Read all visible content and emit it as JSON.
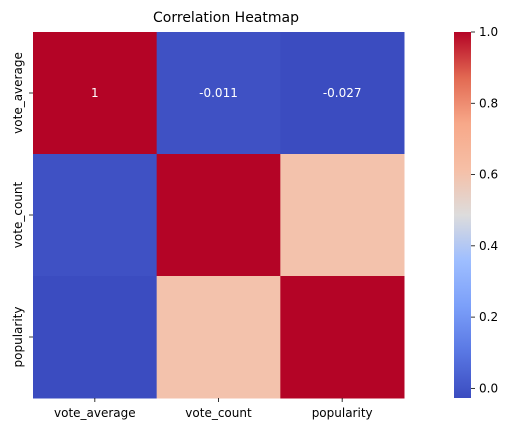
{
  "chart_data": {
    "type": "heatmap",
    "title": "Correlation Heatmap",
    "rows": [
      "vote_average",
      "vote_count",
      "popularity"
    ],
    "columns": [
      "vote_average",
      "vote_count",
      "popularity"
    ],
    "values": [
      [
        1.0,
        -0.011,
        -0.027
      ],
      [
        -0.011,
        1.0,
        0.6
      ],
      [
        -0.027,
        0.6,
        1.0
      ]
    ],
    "annotations": [
      [
        "1",
        "-0.011",
        "-0.027"
      ],
      [
        "",
        "",
        ""
      ],
      [
        "",
        "",
        ""
      ]
    ],
    "colorbar": {
      "vmin": -0.027,
      "vmax": 1.0,
      "ticks": [
        "0.0",
        "0.2",
        "0.4",
        "0.6",
        "0.8",
        "1.0"
      ],
      "tick_values": [
        0.0,
        0.2,
        0.4,
        0.6,
        0.8,
        1.0
      ]
    },
    "colormap": "coolwarm",
    "colors": {
      "low": "#3b4cc0",
      "mid": "#dddcdc",
      "high": "#b40426"
    },
    "grid": false
  }
}
